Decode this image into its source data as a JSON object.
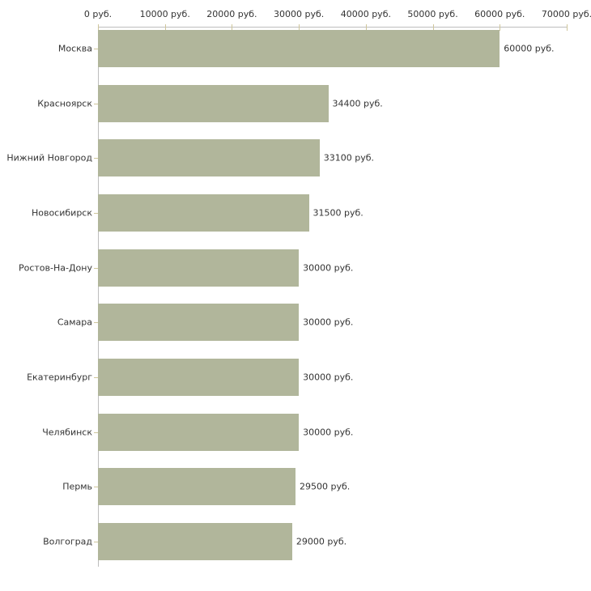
{
  "chart_data": {
    "type": "bar",
    "orientation": "horizontal",
    "title": "",
    "xlabel": "",
    "ylabel": "",
    "categories": [
      "Москва",
      "Красноярск",
      "Нижний Новгород",
      "Новосибирск",
      "Ростов-На-Дону",
      "Самара",
      "Екатеринбург",
      "Челябинск",
      "Пермь",
      "Волгоград"
    ],
    "values": [
      60000,
      34400,
      33100,
      31500,
      30000,
      30000,
      30000,
      30000,
      29500,
      29000
    ],
    "value_labels": [
      "60000 руб.",
      "34400 руб.",
      "33100 руб.",
      "31500 руб.",
      "30000 руб.",
      "30000 руб.",
      "30000 руб.",
      "30000 руб.",
      "29500 руб.",
      "29000 руб."
    ],
    "x_axis": {
      "position": "top",
      "range": [
        0,
        70000
      ],
      "ticks": [
        0,
        10000,
        20000,
        30000,
        40000,
        50000,
        60000,
        70000
      ],
      "tick_labels": [
        "0 руб.",
        "10000 руб.",
        "20000 руб.",
        "30000 руб.",
        "40000 руб.",
        "50000 руб.",
        "60000 руб.",
        "70000 руб."
      ]
    },
    "grid": false,
    "legend": false,
    "colors": {
      "bar_fill": "#b1b69b",
      "axis_line": "#bdbdbd",
      "tick_mark": "#cfc69b",
      "text": "#333333",
      "background": "#ffffff"
    }
  }
}
